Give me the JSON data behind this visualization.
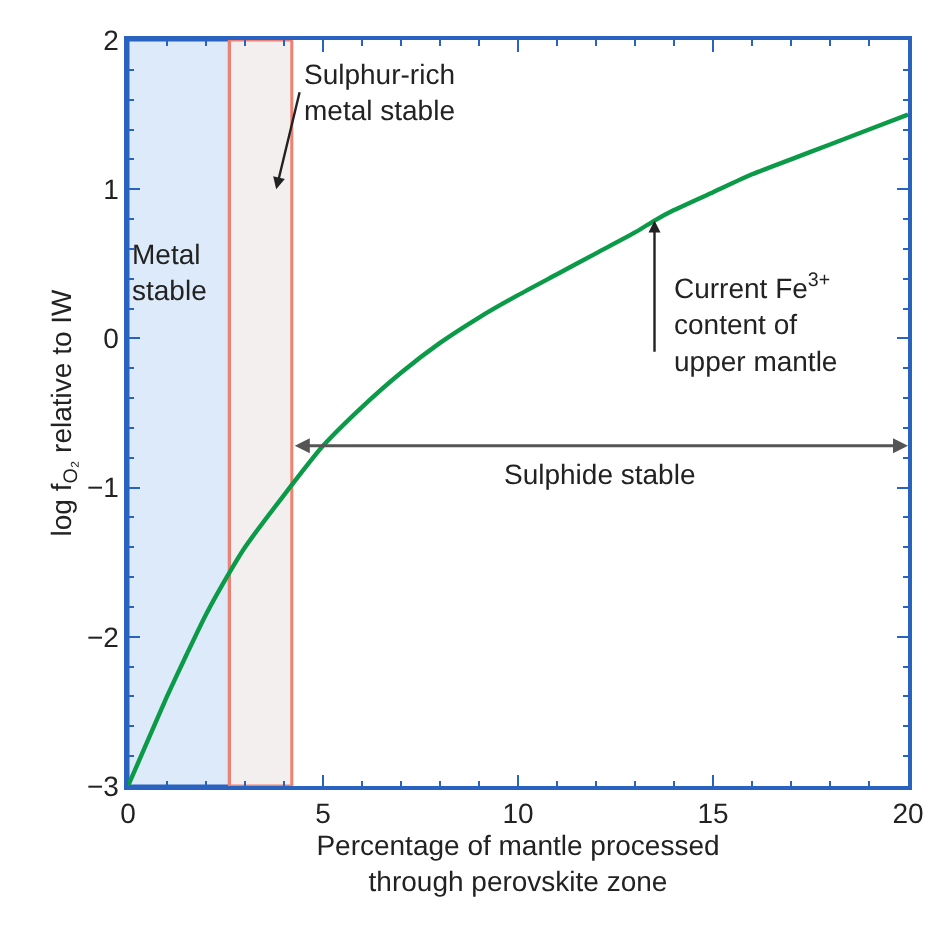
{
  "chart_data": {
    "type": "line",
    "xlabel": "Percentage of mantle processed through perovskite zone",
    "ylabel": "log f$_{O₂}$ relative to IW",
    "x": [
      0,
      0.5,
      1,
      1.5,
      2,
      2.6,
      3,
      4,
      5,
      6,
      7,
      8,
      9,
      10,
      11,
      12,
      13,
      13.5,
      14,
      15,
      16,
      17,
      18,
      19,
      20
    ],
    "series": [
      {
        "color": "#0a9a48",
        "values": [
          -3,
          -2.7,
          -2.4,
          -2.12,
          -1.85,
          -1.57,
          -1.4,
          -1.05,
          -0.72,
          -0.46,
          -0.23,
          -0.03,
          0.14,
          0.29,
          0.43,
          0.57,
          0.71,
          0.79,
          0.86,
          0.98,
          1.1,
          1.2,
          1.3,
          1.4,
          1.5
        ]
      }
    ],
    "xlim": [
      0,
      20
    ],
    "xticks": [
      0,
      5,
      10,
      15,
      20
    ],
    "ylim": [
      -3,
      2
    ],
    "yticks": [
      -3,
      -2,
      -1,
      0,
      1,
      2
    ],
    "grid": false,
    "marker": "none",
    "line_style": "solid",
    "bands": [
      {
        "axis": "x",
        "from": 0,
        "to": 2.6,
        "label": "Metal stable",
        "color": "#2a62c0"
      },
      {
        "axis": "x",
        "from": 2.6,
        "to": 4.2,
        "label": "Sulphur-rich metal stable",
        "color": "#f08070"
      }
    ],
    "annotations": [
      {
        "text": "Current Fe$^{3+}$ content of upper mantle",
        "x": 13.5,
        "y": 0.79
      },
      "Sulphide stable"
    ]
  }
}
